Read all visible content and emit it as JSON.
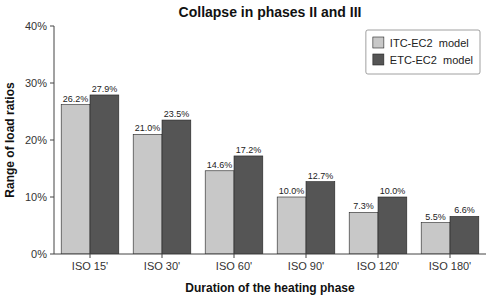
{
  "chart_data": {
    "type": "bar",
    "title": "Collapse in phases II and III",
    "xlabel": "Duration of the heating phase",
    "ylabel": "Range of load ratios",
    "categories": [
      "ISO 15'",
      "ISO 30'",
      "ISO 60'",
      "ISO 90'",
      "ISO 120'",
      "ISO 180'"
    ],
    "series": [
      {
        "name": "ITC-EC2  model",
        "color": "#c8c8c8",
        "values": [
          26.2,
          21.0,
          14.6,
          10.0,
          7.3,
          5.5
        ],
        "value_labels": [
          "26.2%",
          "21.0%",
          "14.6%",
          "10.0%",
          "7.3%",
          "5.5%"
        ]
      },
      {
        "name": "ETC-EC2  model",
        "color": "#555555",
        "values": [
          27.9,
          23.5,
          17.2,
          12.7,
          10.0,
          6.6
        ],
        "value_labels": [
          "27.9%",
          "23.5%",
          "17.2%",
          "12.7%",
          "10.0%",
          "6.6%"
        ]
      }
    ],
    "ylim": [
      0,
      40
    ],
    "yticks": [
      {
        "value": 0,
        "label": "0%"
      },
      {
        "value": 10,
        "label": "10%"
      },
      {
        "value": 20,
        "label": "20%"
      },
      {
        "value": 30,
        "label": "30%"
      },
      {
        "value": 40,
        "label": "40%"
      }
    ],
    "data_labels": true,
    "legend": "upper right",
    "grid": false
  }
}
